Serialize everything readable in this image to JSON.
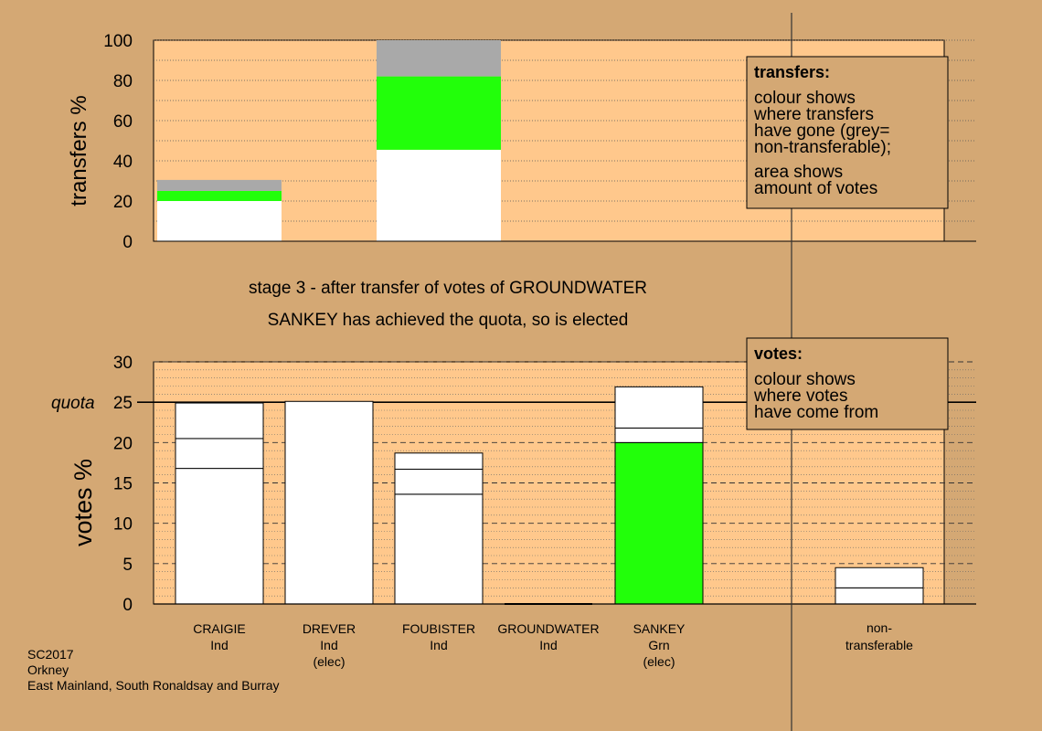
{
  "colors": {
    "page_bg": "#d4a874",
    "plot_bg": "#ffc88c",
    "bar_white": "#ffffff",
    "green": "#22ff0a",
    "grey": "#a9a9a9",
    "legend_box": "#d4a874"
  },
  "stage": {
    "line1": "stage 3 - after transfer of votes of GROUNDWATER",
    "line2": "SANKEY has achieved the quota, so is elected"
  },
  "footer": {
    "line1": "SC2017",
    "line2": "Orkney",
    "line3": "East Mainland, South Ronaldsay and Burray"
  },
  "legend_transfers": {
    "title": "transfers:",
    "lines": [
      "colour shows",
      "where transfers",
      "have gone (grey=",
      "non-transferable);",
      "area shows",
      "amount of votes"
    ]
  },
  "legend_votes": {
    "title": "votes:",
    "lines": [
      "colour shows",
      "where votes",
      "have come from"
    ]
  },
  "chart_data": [
    {
      "type": "bar",
      "ylabel": "transfers %",
      "ylim": [
        0,
        100
      ],
      "yticks": [
        0,
        20,
        40,
        60,
        80,
        100
      ],
      "grid": true,
      "categories": [
        "CRAIGIE",
        "DREVER",
        "FOUBISTER",
        "GROUNDWATER",
        "SANKEY",
        "non-transferable"
      ],
      "bars": [
        {
          "category": "CRAIGIE",
          "segments": [
            {
              "value": 20,
              "color": "white"
            },
            {
              "value": 5,
              "color": "green"
            },
            {
              "value": 5.5,
              "color": "grey"
            }
          ]
        },
        {
          "category": "FOUBISTER",
          "segments": [
            {
              "value": 45.5,
              "color": "white"
            },
            {
              "value": 36.5,
              "color": "green"
            },
            {
              "value": 18,
              "color": "grey"
            }
          ]
        }
      ]
    },
    {
      "type": "bar",
      "ylabel": "votes %",
      "ylim": [
        0,
        30
      ],
      "yticks": [
        0,
        5,
        10,
        15,
        20,
        25,
        30
      ],
      "grid": true,
      "quota": 25,
      "quota_label": "quota",
      "categories": [
        {
          "name": "CRAIGIE",
          "party": "Ind",
          "note": ""
        },
        {
          "name": "DREVER",
          "party": "Ind",
          "note": "(elec)"
        },
        {
          "name": "FOUBISTER",
          "party": "Ind",
          "note": ""
        },
        {
          "name": "GROUNDWATER",
          "party": "Ind",
          "note": ""
        },
        {
          "name": "SANKEY",
          "party": "Grn",
          "note": "(elec)"
        },
        {
          "name": "non-\ntransferable",
          "party": "",
          "note": ""
        }
      ],
      "bars": [
        {
          "category": "CRAIGIE",
          "segments": [
            {
              "value": 16.8,
              "color": "white"
            },
            {
              "value": 3.7,
              "color": "white"
            },
            {
              "value": 4.4,
              "color": "white"
            }
          ]
        },
        {
          "category": "DREVER",
          "segments": [
            {
              "value": 25.1,
              "color": "white"
            }
          ]
        },
        {
          "category": "FOUBISTER",
          "segments": [
            {
              "value": 13.6,
              "color": "white"
            },
            {
              "value": 3.1,
              "color": "white"
            },
            {
              "value": 2.0,
              "color": "white"
            }
          ]
        },
        {
          "category": "GROUNDWATER",
          "segments": [
            {
              "value": 0,
              "color": "white"
            }
          ]
        },
        {
          "category": "SANKEY",
          "segments": [
            {
              "value": 20.0,
              "color": "green"
            },
            {
              "value": 1.8,
              "color": "white"
            },
            {
              "value": 5.1,
              "color": "white"
            }
          ]
        },
        {
          "category": "non-\ntransferable",
          "segments": [
            {
              "value": 2.0,
              "color": "white"
            },
            {
              "value": 2.5,
              "color": "white"
            }
          ]
        }
      ]
    }
  ]
}
